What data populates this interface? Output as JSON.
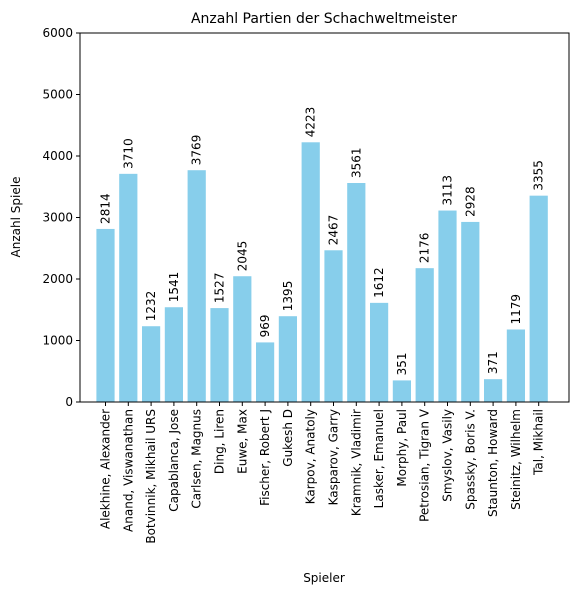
{
  "chart_data": {
    "type": "bar",
    "title": "Anzahl Partien der Schachweltmeister",
    "xlabel": "Spieler",
    "ylabel": "Anzahl Spiele",
    "ylim": [
      0,
      6000
    ],
    "yticks": [
      0,
      1000,
      2000,
      3000,
      4000,
      5000,
      6000
    ],
    "grid": false,
    "bar_color": "#87ceeb",
    "categories": [
      "Alekhine, Alexander",
      "Anand, Viswanathan",
      "Botvinnik, Mikhail URS",
      "Capablanca, Jose",
      "Carlsen, Magnus",
      "Ding, Liren",
      "Euwe, Max",
      "Fischer, Robert J",
      "Gukesh D",
      "Karpov, Anatoly",
      "Kasparov, Garry",
      "Kramnik, Vladimir",
      "Lasker, Emanuel",
      "Morphy, Paul",
      "Petrosian, Tigran V",
      "Smyslov, Vasily",
      "Spassky, Boris V.",
      "Staunton, Howard",
      "Steinitz, Wilhelm",
      "Tal, Mikhail"
    ],
    "values": [
      2814,
      3710,
      1232,
      1541,
      3769,
      1527,
      2045,
      969,
      1395,
      4223,
      2467,
      3561,
      1612,
      351,
      2176,
      3113,
      2928,
      371,
      1179,
      3355
    ]
  }
}
